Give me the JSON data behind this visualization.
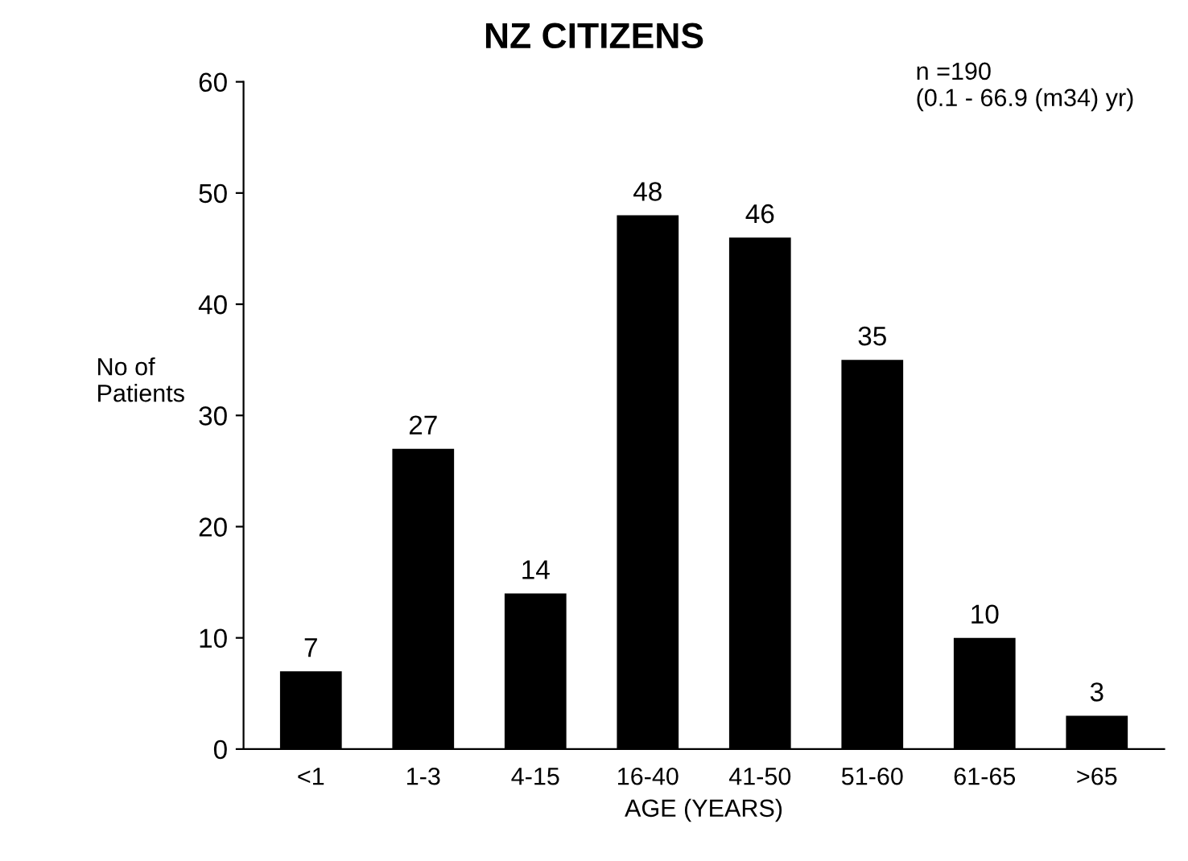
{
  "chart_data": {
    "type": "bar",
    "title": "NZ CITIZENS",
    "xlabel": "AGE (YEARS)",
    "ylabel": "No of\nPatients",
    "annotations": [
      "n =190\n(0.1 - 66.9 (m34) yr)"
    ],
    "categories": [
      "<1",
      "1-3",
      "4-15",
      "16-40",
      "41-50",
      "51-60",
      "61-65",
      ">65"
    ],
    "values": [
      7,
      27,
      14,
      48,
      46,
      35,
      10,
      3
    ],
    "color": "#000000",
    "ylim": [
      0,
      60
    ],
    "yticks": [
      0,
      10,
      20,
      30,
      40,
      50,
      60
    ],
    "data_labels": true,
    "grid": false,
    "legend": false
  }
}
